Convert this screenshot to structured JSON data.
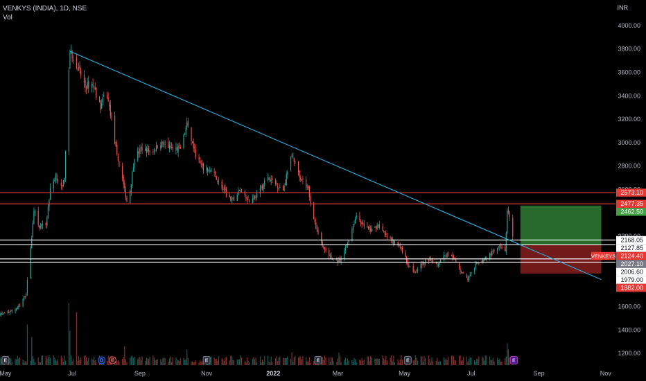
{
  "header": {
    "symbol": "VENKYS (INDIA), 1D, NSE",
    "volume_label": "Vol",
    "currency": "INR"
  },
  "colors": {
    "background": "#000000",
    "up": "#26a69a",
    "down": "#ef5350",
    "trendline": "#2aa8d4",
    "resistance": "#e33b3b",
    "support": "#ffffff",
    "target_zone": "#2e7d32",
    "stop_zone": "#7f1d1d"
  },
  "chart_data": {
    "type": "candlestick",
    "symbol": "VENKYS (INDIA)",
    "interval": "1D",
    "exchange": "NSE",
    "ylim": [
      1100,
      4100
    ],
    "y_ticks": [
      1200,
      1400,
      1600,
      1800,
      2000,
      2200,
      2400,
      2600,
      2800,
      3000,
      3200,
      3400,
      3600,
      3800,
      4000
    ],
    "y_tick_labels": [
      "1200.00",
      "1400.00",
      "1600.00",
      "1800.00",
      "2000.00",
      "2200.00",
      "2400.00",
      "2600.00",
      "2800.00",
      "3000.00",
      "3200.00",
      "3400.00",
      "3600.00",
      "3800.00",
      "4000.00"
    ],
    "x_start": "2021-04-26",
    "x_end": "2022-11-10",
    "x_ticks": [
      {
        "label": "May",
        "date": "2021-05-01"
      },
      {
        "label": "Jul",
        "date": "2021-07-01"
      },
      {
        "label": "Sep",
        "date": "2021-09-01"
      },
      {
        "label": "Nov",
        "date": "2021-11-01"
      },
      {
        "label": "2022",
        "date": "2022-01-01",
        "bold": true
      },
      {
        "label": "Mar",
        "date": "2022-03-01"
      },
      {
        "label": "May",
        "date": "2022-05-01"
      },
      {
        "label": "Jul",
        "date": "2022-07-01"
      },
      {
        "label": "Sep",
        "date": "2022-09-01"
      },
      {
        "label": "Nov",
        "date": "2022-11-01"
      }
    ],
    "price_path": [
      [
        "2021-04-26",
        1530
      ],
      [
        "2021-05-06",
        1560
      ],
      [
        "2021-05-14",
        1600
      ],
      [
        "2021-05-20",
        1720
      ],
      [
        "2021-05-24",
        2100
      ],
      [
        "2021-05-27",
        2420
      ],
      [
        "2021-06-01",
        2280
      ],
      [
        "2021-06-07",
        2300
      ],
      [
        "2021-06-11",
        2600
      ],
      [
        "2021-06-16",
        2720
      ],
      [
        "2021-06-22",
        2600
      ],
      [
        "2021-06-24",
        2720
      ],
      [
        "2021-06-27",
        3400
      ],
      [
        "2021-06-29",
        3780
      ],
      [
        "2021-07-06",
        3650
      ],
      [
        "2021-07-13",
        3480
      ],
      [
        "2021-07-20",
        3500
      ],
      [
        "2021-07-27",
        3300
      ],
      [
        "2021-08-01",
        3450
      ],
      [
        "2021-08-06",
        3200
      ],
      [
        "2021-08-11",
        2880
      ],
      [
        "2021-08-16",
        2700
      ],
      [
        "2021-08-21",
        2450
      ],
      [
        "2021-08-27",
        2880
      ],
      [
        "2021-09-03",
        2950
      ],
      [
        "2021-09-12",
        2920
      ],
      [
        "2021-09-20",
        3000
      ],
      [
        "2021-09-30",
        2950
      ],
      [
        "2021-10-08",
        2950
      ],
      [
        "2021-10-14",
        3150
      ],
      [
        "2021-10-22",
        2900
      ],
      [
        "2021-10-28",
        2780
      ],
      [
        "2021-11-05",
        2760
      ],
      [
        "2021-11-10",
        2700
      ],
      [
        "2021-11-16",
        2600
      ],
      [
        "2021-11-24",
        2500
      ],
      [
        "2021-12-02",
        2600
      ],
      [
        "2021-12-10",
        2500
      ],
      [
        "2021-12-18",
        2560
      ],
      [
        "2021-12-26",
        2700
      ],
      [
        "2022-01-03",
        2650
      ],
      [
        "2022-01-10",
        2600
      ],
      [
        "2022-01-18",
        2900
      ],
      [
        "2022-01-26",
        2700
      ],
      [
        "2022-02-02",
        2600
      ],
      [
        "2022-02-08",
        2300
      ],
      [
        "2022-02-16",
        2100
      ],
      [
        "2022-02-24",
        2000
      ],
      [
        "2022-03-03",
        1980
      ],
      [
        "2022-03-10",
        2150
      ],
      [
        "2022-03-18",
        2380
      ],
      [
        "2022-03-24",
        2300
      ],
      [
        "2022-03-31",
        2250
      ],
      [
        "2022-04-07",
        2300
      ],
      [
        "2022-04-14",
        2200
      ],
      [
        "2022-04-21",
        2150
      ],
      [
        "2022-04-28",
        2100
      ],
      [
        "2022-05-04",
        1970
      ],
      [
        "2022-05-10",
        1900
      ],
      [
        "2022-05-17",
        1960
      ],
      [
        "2022-05-24",
        2010
      ],
      [
        "2022-05-31",
        1960
      ],
      [
        "2022-06-06",
        2040
      ],
      [
        "2022-06-13",
        2050
      ],
      [
        "2022-06-20",
        1920
      ],
      [
        "2022-06-28",
        1830
      ],
      [
        "2022-07-05",
        1950
      ],
      [
        "2022-07-12",
        2000
      ],
      [
        "2022-07-19",
        2050
      ],
      [
        "2022-07-26",
        2100
      ],
      [
        "2022-08-01",
        2080
      ],
      [
        "2022-08-03",
        2400
      ],
      [
        "2022-08-05",
        2380
      ],
      [
        "2022-08-08",
        2180
      ]
    ],
    "volume_spikes": [
      {
        "date": "2021-05-21",
        "v": 0.65
      },
      {
        "date": "2021-05-25",
        "v": 0.45
      },
      {
        "date": "2021-06-28",
        "v": 1.0
      },
      {
        "date": "2021-06-29",
        "v": 0.55
      },
      {
        "date": "2021-07-05",
        "v": 0.85
      },
      {
        "date": "2021-08-18",
        "v": 0.3
      },
      {
        "date": "2021-10-14",
        "v": 0.25
      },
      {
        "date": "2022-01-18",
        "v": 0.2
      },
      {
        "date": "2022-03-02",
        "v": 0.2
      },
      {
        "date": "2022-08-03",
        "v": 0.35
      },
      {
        "date": "2022-08-04",
        "v": 0.25
      }
    ],
    "trendline": {
      "start": {
        "date": "2021-06-29",
        "price": 3780
      },
      "end": {
        "date": "2022-10-28",
        "price": 1830
      }
    },
    "resistance_levels": [
      2573.1,
      2477.35
    ],
    "support_levels": [
      2168.05,
      2127.85,
      2006.6,
      1979.0
    ],
    "position": {
      "start": "2022-08-15",
      "end": "2022-10-28",
      "entry": 2124.4,
      "target": 2462.5,
      "stop": 1882.0
    },
    "events": [
      {
        "label": "E",
        "date": "2021-05-01",
        "type": "earnings"
      },
      {
        "label": "D",
        "date": "2021-07-28",
        "type": "dividend"
      },
      {
        "label": "E",
        "date": "2021-08-07",
        "type": "earnings"
      },
      {
        "label": "E",
        "date": "2021-11-01",
        "type": "earnings"
      },
      {
        "label": "E",
        "date": "2022-02-11",
        "type": "earnings"
      },
      {
        "label": "E",
        "date": "2022-05-04",
        "type": "earnings"
      },
      {
        "label": "E",
        "date": "2022-08-09",
        "type": "earnings-upcoming"
      }
    ],
    "price_tags": [
      {
        "label": "2573.10",
        "price": 2573.1,
        "style": "red"
      },
      {
        "label": "2477.35",
        "price": 2477.35,
        "style": "red"
      },
      {
        "label": "2462.50",
        "price": 2462.5,
        "style": "green"
      },
      {
        "label": "2168.05",
        "price": 2168.05,
        "style": "white"
      },
      {
        "label": "2127.85",
        "price": 2127.85,
        "style": "white"
      },
      {
        "label": "2124.40",
        "price": 2124.4,
        "style": "red",
        "symbol": "VENKEYS"
      },
      {
        "label": "2027.10",
        "price": 2027.1,
        "style": "gray"
      },
      {
        "label": "2006.60",
        "price": 2006.6,
        "style": "white"
      },
      {
        "label": "1979.00",
        "price": 1979.0,
        "style": "white"
      },
      {
        "label": "1882.00",
        "price": 1882.0,
        "style": "red"
      }
    ]
  }
}
